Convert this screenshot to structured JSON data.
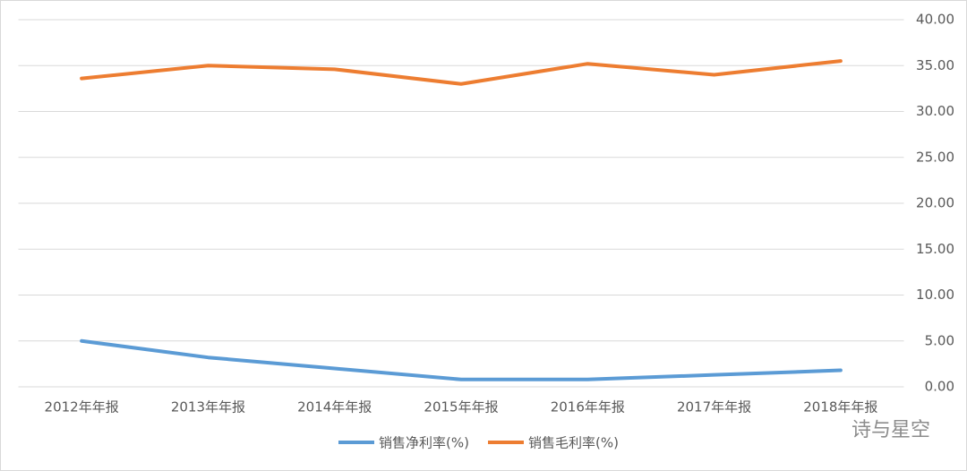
{
  "chart_data": {
    "type": "line",
    "categories": [
      "2012年年报",
      "2013年年报",
      "2014年年报",
      "2015年年报",
      "2016年年报",
      "2017年年报",
      "2018年年报"
    ],
    "series": [
      {
        "name": "销售净利率(%)",
        "color": "#5b9bd5",
        "values": [
          5.0,
          3.2,
          2.0,
          0.8,
          0.8,
          1.3,
          1.8
        ]
      },
      {
        "name": "销售毛利率(%)",
        "color": "#ed7d31",
        "values": [
          33.6,
          35.0,
          34.6,
          33.0,
          35.2,
          34.0,
          35.5
        ]
      }
    ],
    "ylim": [
      0,
      40
    ],
    "yticks": [
      {
        "value": 0,
        "label": "0.00"
      },
      {
        "value": 5,
        "label": "5.00"
      },
      {
        "value": 10,
        "label": "10.00"
      },
      {
        "value": 15,
        "label": "15.00"
      },
      {
        "value": 20,
        "label": "20.00"
      },
      {
        "value": 25,
        "label": "25.00"
      },
      {
        "value": 30,
        "label": "30.00"
      },
      {
        "value": 35,
        "label": "35.00"
      },
      {
        "value": 40,
        "label": "40.00"
      }
    ],
    "grid": true,
    "legend": "bottom",
    "watermark": "诗与星空"
  }
}
